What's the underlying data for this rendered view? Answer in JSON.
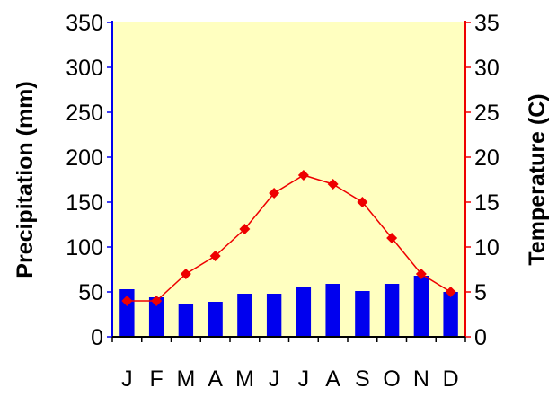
{
  "chart_data": {
    "type": "bar",
    "categories": [
      "J",
      "F",
      "M",
      "A",
      "M",
      "J",
      "J",
      "A",
      "S",
      "O",
      "N",
      "D"
    ],
    "series": [
      {
        "name": "Precipitation",
        "type": "bar",
        "axis": "left",
        "color": "#0000ee",
        "values": [
          53,
          44,
          37,
          39,
          48,
          48,
          56,
          59,
          51,
          59,
          68,
          50
        ]
      },
      {
        "name": "Temperature",
        "type": "line",
        "axis": "right",
        "color": "#ee0000",
        "marker": "diamond",
        "values": [
          4,
          4,
          7,
          9,
          12,
          16,
          18,
          17,
          15,
          11,
          7,
          5
        ]
      }
    ],
    "ylabel": "Precipitation (mm)",
    "ylabel_right": "Temperature (C)",
    "xlabel": "",
    "ylim": [
      0,
      350
    ],
    "ylim_right": [
      0,
      35
    ],
    "yticks": [
      "0",
      "50",
      "100",
      "150",
      "200",
      "250",
      "300",
      "350"
    ],
    "yticks_right": [
      "0",
      "5",
      "10",
      "15",
      "20",
      "25",
      "30",
      "35"
    ],
    "grid": false,
    "plot_background": "#ffffc0",
    "left_axis_color": "#0000ee",
    "right_axis_color": "#ee0000"
  }
}
